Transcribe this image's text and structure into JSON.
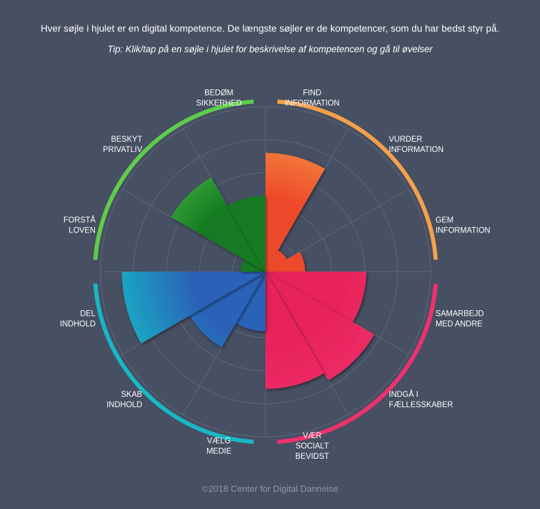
{
  "intro_text": "Hver søjle i hjulet er en digital kompetence. De længste søjler er de kompetencer, som du har bedst styr på.",
  "tip_text": "Tip: Klik/tap på en søjle i hjulet for beskrivelse af kompetencen og gå til øvelser",
  "copyright": "©2018 Center for Digital Dannelse",
  "colors": {
    "background": "#474f62",
    "grid": "#5f6779",
    "orange": "#f5a04a",
    "pink": "#f0306e",
    "cyan": "#17b8c6",
    "green": "#5fcc4a"
  },
  "chart_data": {
    "type": "polar-bar",
    "scale": [
      0,
      10
    ],
    "rings": 5,
    "groups": [
      {
        "name": "orange",
        "color": "#f5a04a"
      },
      {
        "name": "pink",
        "color": "#f0306e"
      },
      {
        "name": "cyan",
        "color": "#17b8c6"
      },
      {
        "name": "green",
        "color": "#5fcc4a"
      }
    ],
    "segments": [
      {
        "label": [
          "FIND",
          "INFORMATION"
        ],
        "value": 7.2,
        "group": "orange"
      },
      {
        "label": [
          "VURDER",
          "INFORMATION"
        ],
        "value": 1.5,
        "group": "orange"
      },
      {
        "label": [
          "GEM",
          "INFORMATION"
        ],
        "value": 2.4,
        "group": "orange"
      },
      {
        "label": [
          "SAMARBEJD",
          "MED ANDRE"
        ],
        "value": 6.1,
        "group": "pink"
      },
      {
        "label": [
          "INDGÅ I",
          "FÆLLESSKABER"
        ],
        "value": 7.6,
        "group": "pink"
      },
      {
        "label": [
          "VÆR",
          "SOCIALT",
          "BEVIDST"
        ],
        "value": 7.1,
        "group": "pink"
      },
      {
        "label": [
          "VÆLG",
          "MEDIE"
        ],
        "value": 3.6,
        "group": "cyan"
      },
      {
        "label": [
          "SKAB",
          "INDHOLD"
        ],
        "value": 5.3,
        "group": "cyan"
      },
      {
        "label": [
          "DEL",
          "INDHOLD"
        ],
        "value": 8.7,
        "group": "cyan"
      },
      {
        "label": [
          "FORSTÅ",
          "LOVEN"
        ],
        "value": 1.5,
        "group": "green"
      },
      {
        "label": [
          "BESKYT",
          "PRIVATLIV"
        ],
        "value": 6.6,
        "group": "green"
      },
      {
        "label": [
          "BEDØM",
          "SIKKERHED"
        ],
        "value": 4.6,
        "group": "green"
      }
    ]
  }
}
